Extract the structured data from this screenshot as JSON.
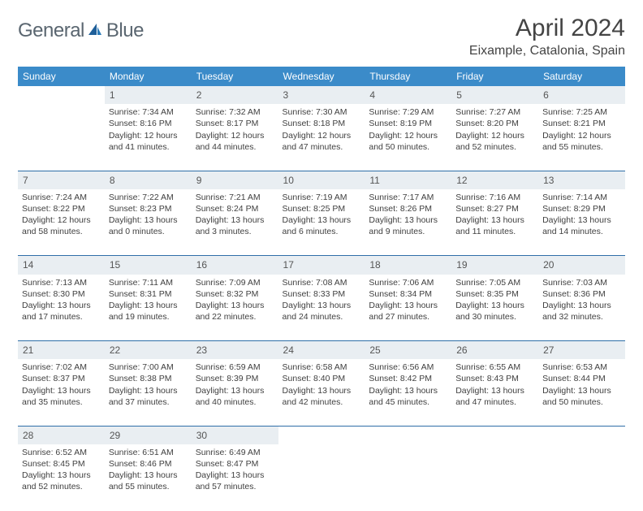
{
  "logo": {
    "text_general": "General",
    "text_blue": "Blue"
  },
  "title": "April 2024",
  "location": "Eixample, Catalonia, Spain",
  "colors": {
    "header_bg": "#3b8bc9",
    "header_text": "#ffffff",
    "daynum_bg": "#e9eef2",
    "border": "#2f6ea8",
    "body_text": "#404040",
    "logo_gray": "#5a6670",
    "logo_blue": "#2a7ab8"
  },
  "day_headers": [
    "Sunday",
    "Monday",
    "Tuesday",
    "Wednesday",
    "Thursday",
    "Friday",
    "Saturday"
  ],
  "weeks": [
    {
      "nums": [
        "",
        "1",
        "2",
        "3",
        "4",
        "5",
        "6"
      ],
      "cells": [
        null,
        {
          "sunrise": "Sunrise: 7:34 AM",
          "sunset": "Sunset: 8:16 PM",
          "dl1": "Daylight: 12 hours",
          "dl2": "and 41 minutes."
        },
        {
          "sunrise": "Sunrise: 7:32 AM",
          "sunset": "Sunset: 8:17 PM",
          "dl1": "Daylight: 12 hours",
          "dl2": "and 44 minutes."
        },
        {
          "sunrise": "Sunrise: 7:30 AM",
          "sunset": "Sunset: 8:18 PM",
          "dl1": "Daylight: 12 hours",
          "dl2": "and 47 minutes."
        },
        {
          "sunrise": "Sunrise: 7:29 AM",
          "sunset": "Sunset: 8:19 PM",
          "dl1": "Daylight: 12 hours",
          "dl2": "and 50 minutes."
        },
        {
          "sunrise": "Sunrise: 7:27 AM",
          "sunset": "Sunset: 8:20 PM",
          "dl1": "Daylight: 12 hours",
          "dl2": "and 52 minutes."
        },
        {
          "sunrise": "Sunrise: 7:25 AM",
          "sunset": "Sunset: 8:21 PM",
          "dl1": "Daylight: 12 hours",
          "dl2": "and 55 minutes."
        }
      ]
    },
    {
      "nums": [
        "7",
        "8",
        "9",
        "10",
        "11",
        "12",
        "13"
      ],
      "cells": [
        {
          "sunrise": "Sunrise: 7:24 AM",
          "sunset": "Sunset: 8:22 PM",
          "dl1": "Daylight: 12 hours",
          "dl2": "and 58 minutes."
        },
        {
          "sunrise": "Sunrise: 7:22 AM",
          "sunset": "Sunset: 8:23 PM",
          "dl1": "Daylight: 13 hours",
          "dl2": "and 0 minutes."
        },
        {
          "sunrise": "Sunrise: 7:21 AM",
          "sunset": "Sunset: 8:24 PM",
          "dl1": "Daylight: 13 hours",
          "dl2": "and 3 minutes."
        },
        {
          "sunrise": "Sunrise: 7:19 AM",
          "sunset": "Sunset: 8:25 PM",
          "dl1": "Daylight: 13 hours",
          "dl2": "and 6 minutes."
        },
        {
          "sunrise": "Sunrise: 7:17 AM",
          "sunset": "Sunset: 8:26 PM",
          "dl1": "Daylight: 13 hours",
          "dl2": "and 9 minutes."
        },
        {
          "sunrise": "Sunrise: 7:16 AM",
          "sunset": "Sunset: 8:27 PM",
          "dl1": "Daylight: 13 hours",
          "dl2": "and 11 minutes."
        },
        {
          "sunrise": "Sunrise: 7:14 AM",
          "sunset": "Sunset: 8:29 PM",
          "dl1": "Daylight: 13 hours",
          "dl2": "and 14 minutes."
        }
      ]
    },
    {
      "nums": [
        "14",
        "15",
        "16",
        "17",
        "18",
        "19",
        "20"
      ],
      "cells": [
        {
          "sunrise": "Sunrise: 7:13 AM",
          "sunset": "Sunset: 8:30 PM",
          "dl1": "Daylight: 13 hours",
          "dl2": "and 17 minutes."
        },
        {
          "sunrise": "Sunrise: 7:11 AM",
          "sunset": "Sunset: 8:31 PM",
          "dl1": "Daylight: 13 hours",
          "dl2": "and 19 minutes."
        },
        {
          "sunrise": "Sunrise: 7:09 AM",
          "sunset": "Sunset: 8:32 PM",
          "dl1": "Daylight: 13 hours",
          "dl2": "and 22 minutes."
        },
        {
          "sunrise": "Sunrise: 7:08 AM",
          "sunset": "Sunset: 8:33 PM",
          "dl1": "Daylight: 13 hours",
          "dl2": "and 24 minutes."
        },
        {
          "sunrise": "Sunrise: 7:06 AM",
          "sunset": "Sunset: 8:34 PM",
          "dl1": "Daylight: 13 hours",
          "dl2": "and 27 minutes."
        },
        {
          "sunrise": "Sunrise: 7:05 AM",
          "sunset": "Sunset: 8:35 PM",
          "dl1": "Daylight: 13 hours",
          "dl2": "and 30 minutes."
        },
        {
          "sunrise": "Sunrise: 7:03 AM",
          "sunset": "Sunset: 8:36 PM",
          "dl1": "Daylight: 13 hours",
          "dl2": "and 32 minutes."
        }
      ]
    },
    {
      "nums": [
        "21",
        "22",
        "23",
        "24",
        "25",
        "26",
        "27"
      ],
      "cells": [
        {
          "sunrise": "Sunrise: 7:02 AM",
          "sunset": "Sunset: 8:37 PM",
          "dl1": "Daylight: 13 hours",
          "dl2": "and 35 minutes."
        },
        {
          "sunrise": "Sunrise: 7:00 AM",
          "sunset": "Sunset: 8:38 PM",
          "dl1": "Daylight: 13 hours",
          "dl2": "and 37 minutes."
        },
        {
          "sunrise": "Sunrise: 6:59 AM",
          "sunset": "Sunset: 8:39 PM",
          "dl1": "Daylight: 13 hours",
          "dl2": "and 40 minutes."
        },
        {
          "sunrise": "Sunrise: 6:58 AM",
          "sunset": "Sunset: 8:40 PM",
          "dl1": "Daylight: 13 hours",
          "dl2": "and 42 minutes."
        },
        {
          "sunrise": "Sunrise: 6:56 AM",
          "sunset": "Sunset: 8:42 PM",
          "dl1": "Daylight: 13 hours",
          "dl2": "and 45 minutes."
        },
        {
          "sunrise": "Sunrise: 6:55 AM",
          "sunset": "Sunset: 8:43 PM",
          "dl1": "Daylight: 13 hours",
          "dl2": "and 47 minutes."
        },
        {
          "sunrise": "Sunrise: 6:53 AM",
          "sunset": "Sunset: 8:44 PM",
          "dl1": "Daylight: 13 hours",
          "dl2": "and 50 minutes."
        }
      ]
    },
    {
      "nums": [
        "28",
        "29",
        "30",
        "",
        "",
        "",
        ""
      ],
      "cells": [
        {
          "sunrise": "Sunrise: 6:52 AM",
          "sunset": "Sunset: 8:45 PM",
          "dl1": "Daylight: 13 hours",
          "dl2": "and 52 minutes."
        },
        {
          "sunrise": "Sunrise: 6:51 AM",
          "sunset": "Sunset: 8:46 PM",
          "dl1": "Daylight: 13 hours",
          "dl2": "and 55 minutes."
        },
        {
          "sunrise": "Sunrise: 6:49 AM",
          "sunset": "Sunset: 8:47 PM",
          "dl1": "Daylight: 13 hours",
          "dl2": "and 57 minutes."
        },
        null,
        null,
        null,
        null
      ]
    }
  ]
}
